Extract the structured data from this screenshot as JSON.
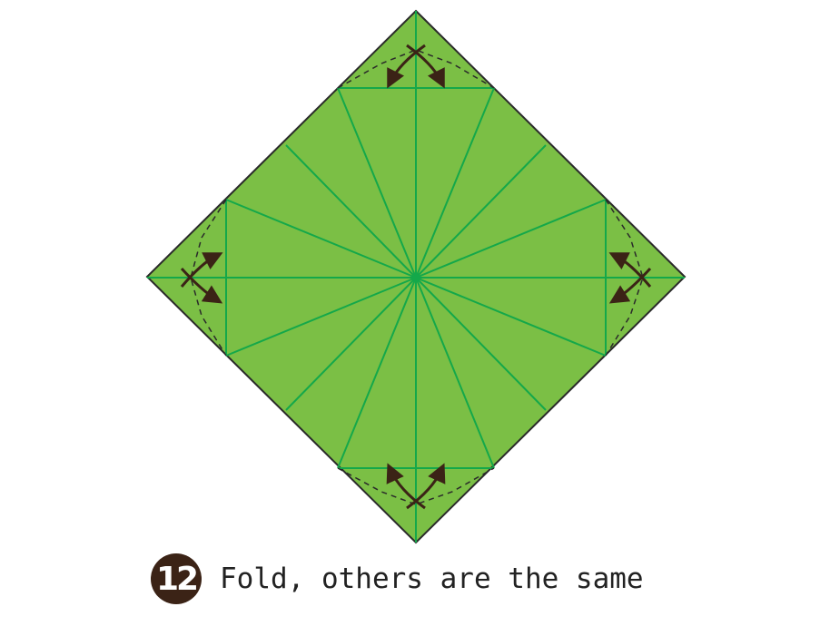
{
  "diagram": {
    "paper_color": "#7bbf45",
    "flap_color": "#8ccc4f",
    "crease_color": "#14a84a",
    "edge_color": "#2a2a2a",
    "arrow_color": "#3b2316"
  },
  "caption": {
    "step_number": "12",
    "instruction": "Fold, others are the same"
  }
}
